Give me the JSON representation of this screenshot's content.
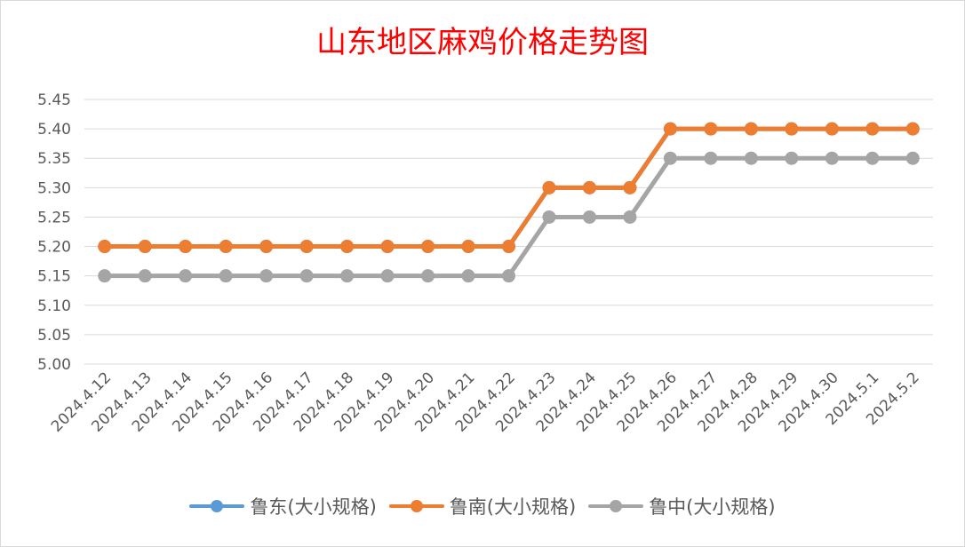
{
  "chart_data": {
    "type": "line",
    "title": "山东地区麻鸡价格走势图",
    "xlabel": "",
    "ylabel": "",
    "categories": [
      "2024.4.12",
      "2024.4.13",
      "2024.4.14",
      "2024.4.15",
      "2024.4.16",
      "2024.4.17",
      "2024.4.18",
      "2024.4.19",
      "2024.4.20",
      "2024.4.21",
      "2024.4.22",
      "2024.4.23",
      "2024.4.24",
      "2024.4.25",
      "2024.4.26",
      "2024.4.27",
      "2024.4.28",
      "2024.4.29",
      "2024.4.30",
      "2024.5.1",
      "2024.5.2"
    ],
    "ylim": [
      5.0,
      5.45
    ],
    "yticks": [
      "5.00",
      "5.05",
      "5.10",
      "5.15",
      "5.20",
      "5.25",
      "5.30",
      "5.35",
      "5.40",
      "5.45"
    ],
    "grid": true,
    "legend_position": "bottom",
    "series": [
      {
        "name": "鲁东(大小规格)",
        "color": "#5b9bd5",
        "values": [
          5.2,
          5.2,
          5.2,
          5.2,
          5.2,
          5.2,
          5.2,
          5.2,
          5.2,
          5.2,
          5.2,
          5.3,
          5.3,
          5.3,
          5.4,
          5.4,
          5.4,
          5.4,
          5.4,
          5.4,
          5.4
        ]
      },
      {
        "name": "鲁南(大小规格)",
        "color": "#ed7d31",
        "values": [
          5.2,
          5.2,
          5.2,
          5.2,
          5.2,
          5.2,
          5.2,
          5.2,
          5.2,
          5.2,
          5.2,
          5.3,
          5.3,
          5.3,
          5.4,
          5.4,
          5.4,
          5.4,
          5.4,
          5.4,
          5.4
        ]
      },
      {
        "name": "鲁中(大小规格)",
        "color": "#a5a5a5",
        "values": [
          5.15,
          5.15,
          5.15,
          5.15,
          5.15,
          5.15,
          5.15,
          5.15,
          5.15,
          5.15,
          5.15,
          5.25,
          5.25,
          5.25,
          5.35,
          5.35,
          5.35,
          5.35,
          5.35,
          5.35,
          5.35
        ]
      }
    ]
  }
}
